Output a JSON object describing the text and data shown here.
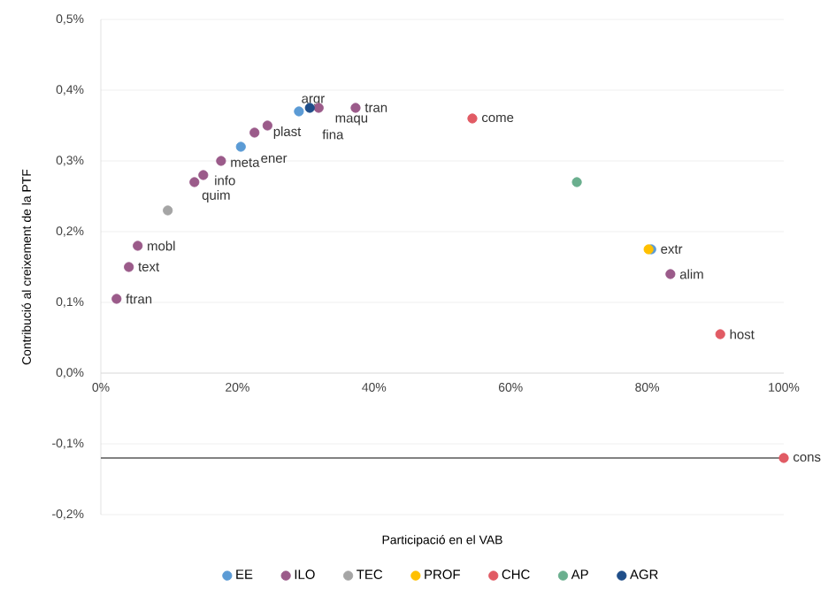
{
  "chart_data": {
    "type": "scatter",
    "xlabel": "Participació en el VAB",
    "ylabel": "Contribució al creixement de la PTF",
    "xlim": [
      0,
      100
    ],
    "ylim": [
      -0.2,
      0.5
    ],
    "xticks": [
      {
        "value": 0,
        "label": "0%"
      },
      {
        "value": 20,
        "label": "20%"
      },
      {
        "value": 40,
        "label": "40%"
      },
      {
        "value": 60,
        "label": "60%"
      },
      {
        "value": 80,
        "label": "80%"
      },
      {
        "value": 100,
        "label": "100%"
      }
    ],
    "yticks": [
      {
        "value": -0.2,
        "label": "-0,2%"
      },
      {
        "value": -0.1,
        "label": "-0,1%"
      },
      {
        "value": 0,
        "label": "0,0%"
      },
      {
        "value": 0.1,
        "label": "0,1%"
      },
      {
        "value": 0.2,
        "label": "0,2%"
      },
      {
        "value": 0.3,
        "label": "0,3%"
      },
      {
        "value": 0.4,
        "label": "0,4%"
      },
      {
        "value": 0.5,
        "label": "0,5%"
      }
    ],
    "grid": "y",
    "legend": "bottom",
    "series": [
      {
        "name": "EE",
        "color": "#5b9bd5",
        "x": [
          20.5,
          29.0,
          80.6
        ],
        "values": [
          0.32,
          0.37,
          0.175
        ]
      },
      {
        "name": "ILO",
        "color": "#9b5b8a",
        "x": [
          31.9,
          37.3,
          24.4,
          22.5,
          17.6,
          15.0,
          13.7,
          5.4,
          4.1,
          2.3,
          83.4
        ],
        "values": [
          0.375,
          0.375,
          0.35,
          0.34,
          0.3,
          0.28,
          0.27,
          0.18,
          0.15,
          0.105,
          0.14
        ]
      },
      {
        "name": "TEC",
        "color": "#a5a5a5",
        "x": [
          9.8
        ],
        "values": [
          0.23
        ]
      },
      {
        "name": "PROF",
        "color": "#ffc000",
        "x": [
          80.2
        ],
        "values": [
          0.175
        ]
      },
      {
        "name": "CHC",
        "color": "#e15b64",
        "x": [
          54.4,
          90.7,
          100
        ],
        "values": [
          0.36,
          0.055,
          -0.12
        ]
      },
      {
        "name": "AP",
        "color": "#6aaf8e",
        "x": [
          69.7
        ],
        "values": [
          0.27
        ]
      },
      {
        "name": "AGR",
        "color": "#1f4e89",
        "x": [
          30.6
        ],
        "values": [
          0.375
        ]
      }
    ],
    "ref_lines": [
      {
        "axis": "y",
        "value": -0.12,
        "color": "#595959"
      }
    ],
    "annotations": [
      {
        "text": "tran",
        "x": 37.3,
        "y": 0.375
      },
      {
        "text": "maqu",
        "x": 31.9,
        "y": 0.375
      },
      {
        "text": "argr",
        "x": 30.6,
        "y": 0.375
      },
      {
        "text": "fina",
        "x": 29.0,
        "y": 0.37
      },
      {
        "text": "plast",
        "x": 24.4,
        "y": 0.35
      },
      {
        "text": "ener",
        "x": 20.5,
        "y": 0.32
      },
      {
        "text": "meta",
        "x": 17.6,
        "y": 0.3
      },
      {
        "text": "info",
        "x": 15.0,
        "y": 0.28
      },
      {
        "text": "quim",
        "x": 13.7,
        "y": 0.27
      },
      {
        "text": "mobl",
        "x": 5.4,
        "y": 0.18
      },
      {
        "text": "text",
        "x": 4.1,
        "y": 0.15
      },
      {
        "text": "ftran",
        "x": 2.3,
        "y": 0.105
      },
      {
        "text": "come",
        "x": 54.4,
        "y": 0.36
      },
      {
        "text": "extr",
        "x": 80.6,
        "y": 0.175
      },
      {
        "text": "alim",
        "x": 83.4,
        "y": 0.14
      },
      {
        "text": "host",
        "x": 90.7,
        "y": 0.055
      },
      {
        "text": "cons",
        "x": 100,
        "y": -0.12
      }
    ]
  }
}
